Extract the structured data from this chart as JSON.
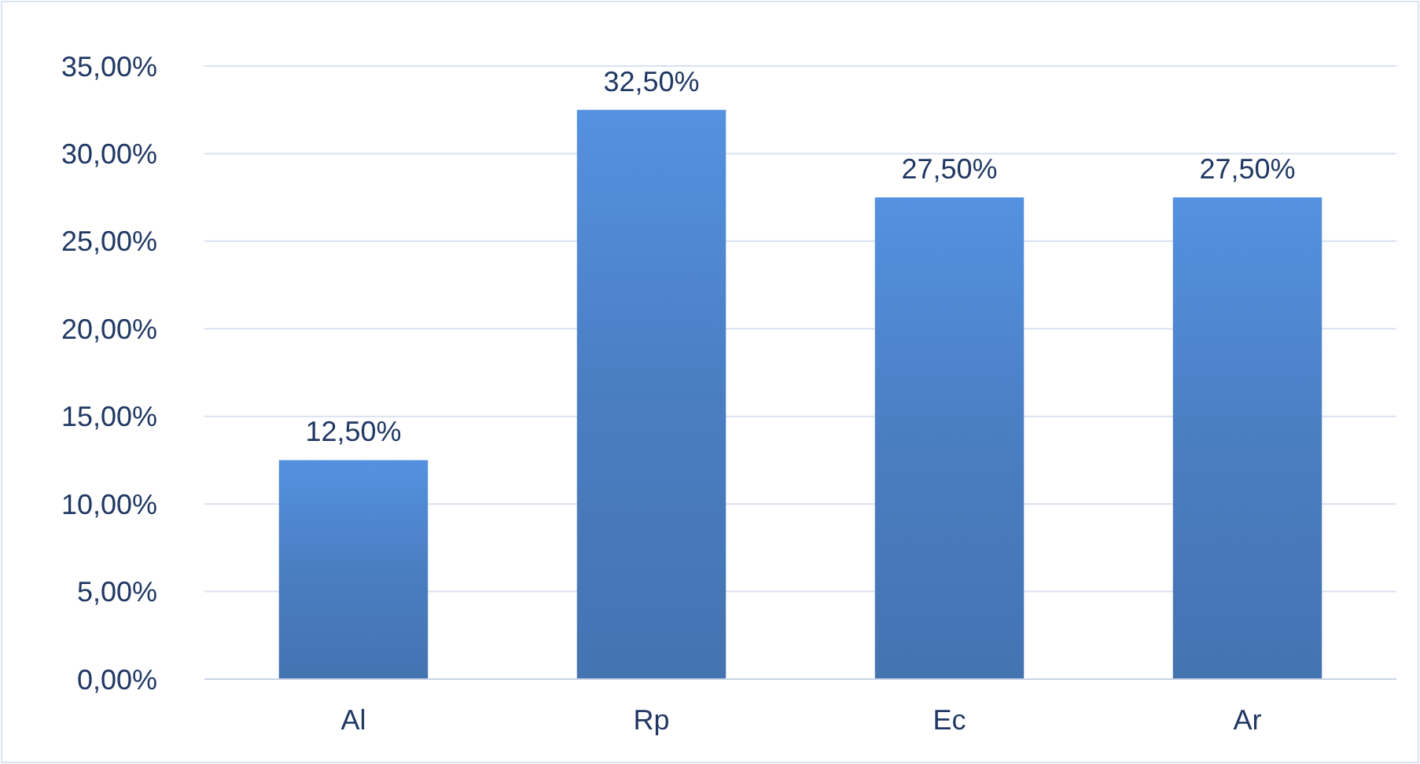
{
  "chart_data": {
    "type": "bar",
    "categories": [
      "Al",
      "Rp",
      "Ec",
      "Ar"
    ],
    "values": [
      12.5,
      32.5,
      27.5,
      27.5
    ],
    "value_labels": [
      "12,50%",
      "32,50%",
      "27,50%",
      "27,50%"
    ],
    "color": "#4a7ec2",
    "ylim": [
      0,
      35
    ],
    "yticks": [
      {
        "value": 0,
        "label": "0,00%"
      },
      {
        "value": 5,
        "label": "5,00%"
      },
      {
        "value": 10,
        "label": "10,00%"
      },
      {
        "value": 15,
        "label": "15,00%"
      },
      {
        "value": 20,
        "label": "20,00%"
      },
      {
        "value": 25,
        "label": "25,00%"
      },
      {
        "value": 30,
        "label": "30,00%"
      },
      {
        "value": 35,
        "label": "35,00%"
      }
    ],
    "grid": "y"
  }
}
